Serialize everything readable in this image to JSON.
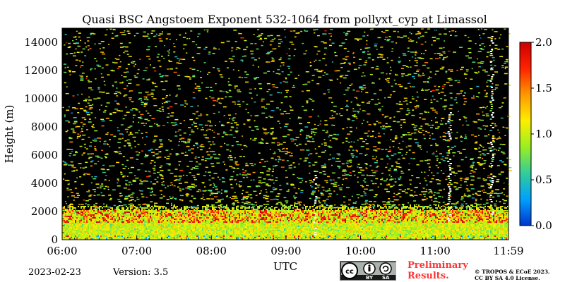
{
  "chart_data": {
    "type": "heatmap",
    "title": "Quasi BSC Angstoem Exponent 532-1064 from pollyxt_cyp at Limassol",
    "xlabel": "UTC",
    "ylabel": "Height (m)",
    "x_ticks": [
      "06:00",
      "07:00",
      "08:00",
      "09:00",
      "10:00",
      "11:00",
      "11:59"
    ],
    "x_tick_hours": [
      6.0,
      7.0,
      8.0,
      9.0,
      10.0,
      11.0,
      11.983
    ],
    "xlim_hours": [
      6.0,
      11.983
    ],
    "y_ticks": [
      0,
      2000,
      4000,
      6000,
      8000,
      10000,
      12000,
      14000
    ],
    "ylim": [
      0,
      15000
    ],
    "colorbar": {
      "ticks": [
        "0.0",
        "0.5",
        "1.0",
        "1.5",
        "2.0"
      ],
      "tick_values": [
        0.0,
        0.5,
        1.0,
        1.5,
        2.0
      ],
      "range": [
        0.0,
        2.0
      ],
      "colormap": [
        "#0033cc",
        "#00a0ff",
        "#33cc99",
        "#99ee22",
        "#ffee00",
        "#ff9900",
        "#ff2200",
        "#cc0000"
      ]
    },
    "background_color": "#000000",
    "cloud_color": "#ffffff",
    "cloud_columns_hours": [
      9.38,
      11.18,
      11.75
    ],
    "description_values": {
      "boundary_layer_top_m": 2300,
      "dominant_value_low_layer": 1.0
    }
  },
  "footer": {
    "date": "2023-02-23",
    "version": "Version: 3.5",
    "preliminary": [
      "Preliminary",
      "Results."
    ],
    "copyright": [
      "© TROPOS & ECoE 2023.",
      "CC BY SA 4.0 License."
    ],
    "license_badge": [
      "BY",
      "SA"
    ],
    "license_icon": "cc-by-sa-icon"
  }
}
